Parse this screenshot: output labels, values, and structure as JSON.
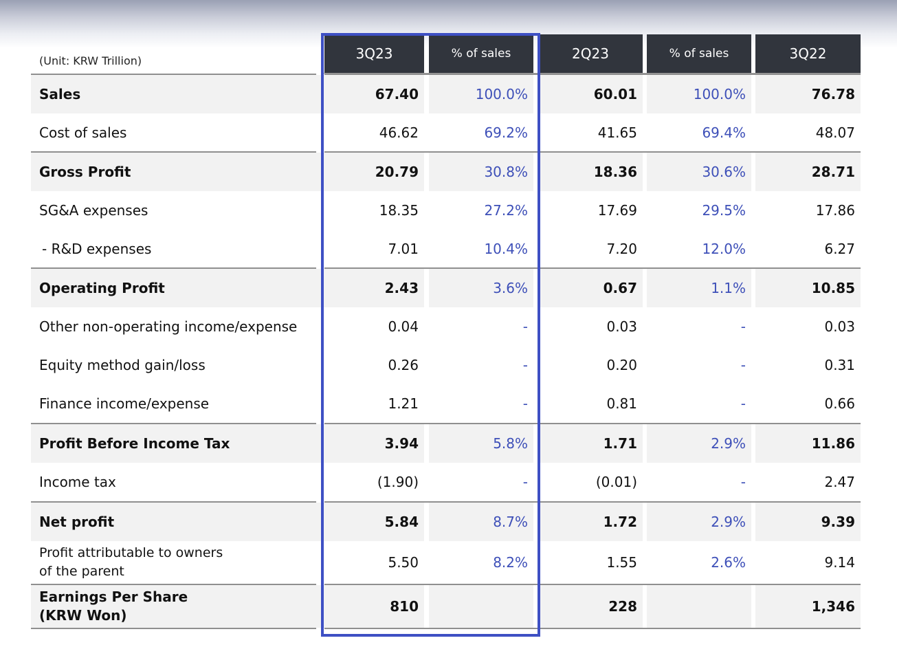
{
  "unit_label": "(Unit: KRW Trillion)",
  "headers": [
    "3Q23",
    "% of sales",
    "2Q23",
    "% of sales",
    "3Q22"
  ],
  "rows": [
    {
      "label": "Sales",
      "v1": "67.40",
      "p1": "100.0%",
      "v2": "60.01",
      "p2": "100.0%",
      "v3": "76.78"
    },
    {
      "label": "Cost of sales",
      "v1": "46.62",
      "p1": "69.2%",
      "v2": "41.65",
      "p2": "69.4%",
      "v3": "48.07"
    },
    {
      "label": "Gross Profit",
      "v1": "20.79",
      "p1": "30.8%",
      "v2": "18.36",
      "p2": "30.6%",
      "v3": "28.71"
    },
    {
      "label": "SG&A expenses",
      "v1": "18.35",
      "p1": "27.2%",
      "v2": "17.69",
      "p2": "29.5%",
      "v3": "17.86"
    },
    {
      "label": "- R&D expenses",
      "v1": "7.01",
      "p1": "10.4%",
      "v2": "7.20",
      "p2": "12.0%",
      "v3": "6.27"
    },
    {
      "label": "Operating Profit",
      "v1": "2.43",
      "p1": "3.6%",
      "v2": "0.67",
      "p2": "1.1%",
      "v3": "10.85"
    },
    {
      "label": "Other non-operating income/expense",
      "v1": "0.04",
      "p1": "-",
      "v2": "0.03",
      "p2": "-",
      "v3": "0.03"
    },
    {
      "label": "Equity method gain/loss",
      "v1": "0.26",
      "p1": "-",
      "v2": "0.20",
      "p2": "-",
      "v3": "0.31"
    },
    {
      "label": "Finance income/expense",
      "v1": "1.21",
      "p1": "-",
      "v2": "0.81",
      "p2": "-",
      "v3": "0.66"
    },
    {
      "label": "Profit Before Income Tax",
      "v1": "3.94",
      "p1": "5.8%",
      "v2": "1.71",
      "p2": "2.9%",
      "v3": "11.86"
    },
    {
      "label": "Income tax",
      "v1": "(1.90)",
      "p1": "-",
      "v2": "(0.01)",
      "p2": "-",
      "v3": "2.47"
    },
    {
      "label": "Net profit",
      "v1": "5.84",
      "p1": "8.7%",
      "v2": "1.72",
      "p2": "2.9%",
      "v3": "9.39"
    },
    {
      "label_line1": "Profit attributable to owners",
      "label_line2": "of the parent",
      "v1": "5.50",
      "p1": "8.2%",
      "v2": "1.55",
      "p2": "2.6%",
      "v3": "9.14"
    },
    {
      "label_line1": "Earnings Per Share",
      "label_line2": "(KRW Won)",
      "v1": "810",
      "p1": "",
      "v2": "228",
      "p2": "",
      "v3": "1,346"
    }
  ],
  "colors": {
    "header_bg": "#31353d",
    "pct_text": "#3d4fb8",
    "highlight_border": "#3e50c4",
    "shaded_row": "#f2f2f2"
  }
}
